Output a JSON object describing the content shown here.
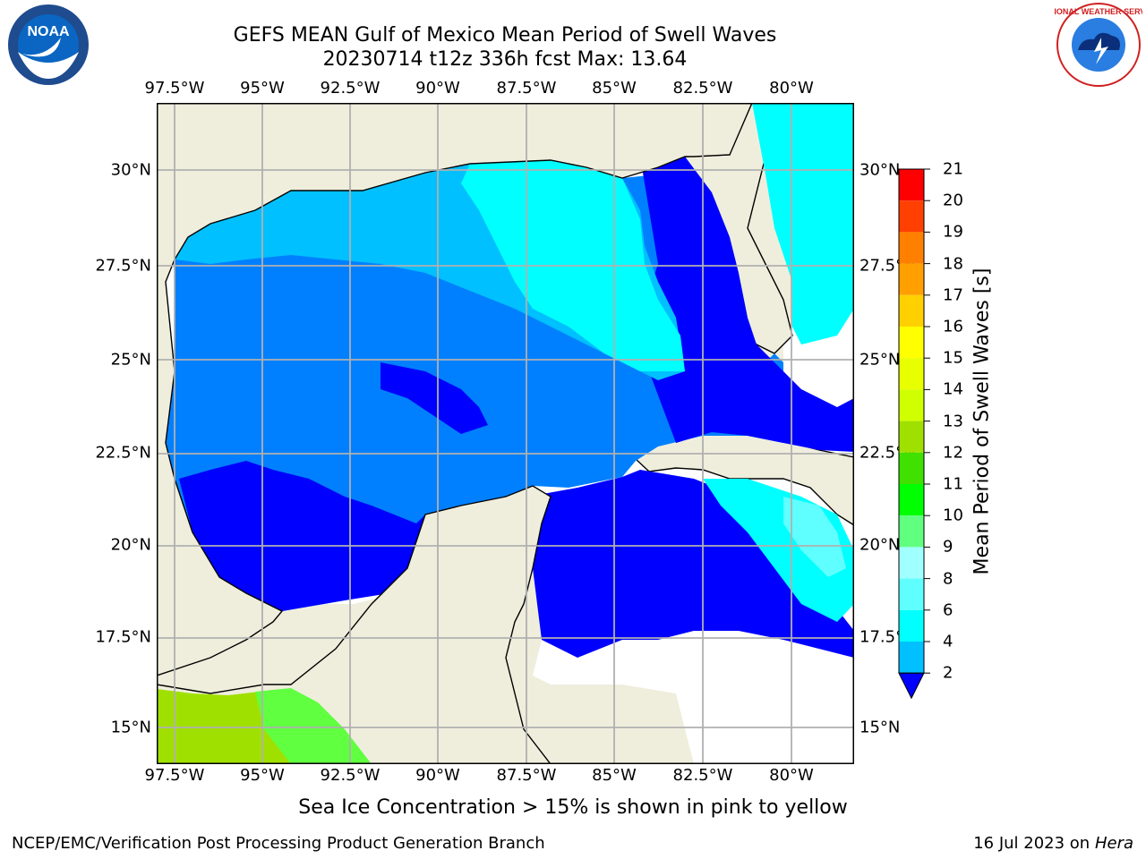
{
  "title": "GEFS MEAN Gulf of Mexico Mean Period of Swell Waves",
  "subtitle": "20230714 t12z 336h fcst   Max: 13.64",
  "lon_labels": [
    "97.5°W",
    "95°W",
    "92.5°W",
    "90°W",
    "87.5°W",
    "85°W",
    "82.5°W",
    "80°W"
  ],
  "lat_labels": [
    "30°N",
    "27.5°N",
    "25°N",
    "22.5°N",
    "20°N",
    "17.5°N",
    "15°N"
  ],
  "colorbar": {
    "title": "Mean Period of Swell Waves [s]",
    "ticks": [
      "2",
      "4",
      "6",
      "8",
      "9",
      "10",
      "11",
      "12",
      "13",
      "14",
      "15",
      "16",
      "17",
      "18",
      "19",
      "20",
      "21"
    ],
    "colors": [
      "#0080ff",
      "#00c0ff",
      "#00ffff",
      "#60ffff",
      "#a0ffff",
      "#60ff80",
      "#00ff00",
      "#40e000",
      "#a0e000",
      "#d0ff00",
      "#e8ff00",
      "#ffff00",
      "#ffd000",
      "#ffa000",
      "#ff8000",
      "#ff4000",
      "#ff0000"
    ],
    "extend_color": "#0000ff"
  },
  "map": {
    "lon_range": [
      -98,
      -79
    ],
    "lat_range": [
      14,
      31.5
    ],
    "land_color": "#efeedd",
    "legend_note": "Sea Ice Concentration > 15% is shown in pink to yellow"
  },
  "footer": {
    "left": "NCEP/EMC/Verification Post Processing Product Generation Branch",
    "date": "16 Jul 2023 on ",
    "host": "Hera"
  },
  "logos": {
    "left": "noaa-logo",
    "left_text": "NOAA",
    "right": "nws-logo",
    "right_text": "NATIONAL WEATHER SERVICE"
  }
}
